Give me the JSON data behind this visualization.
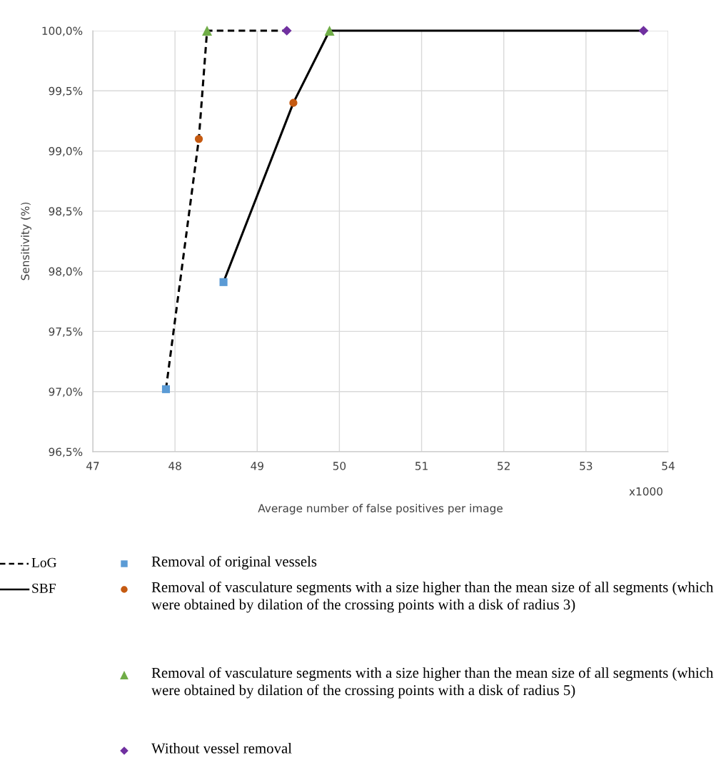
{
  "chart_data": {
    "type": "line",
    "xlabel": "Average number of false positives per image",
    "ylabel": "Sensitivity (%)",
    "xlim": [
      47,
      54
    ],
    "xticks": [
      47,
      48,
      49,
      50,
      51,
      52,
      53,
      54
    ],
    "ylim": [
      96.5,
      100
    ],
    "yticks": [
      {
        "value": 96.5,
        "label": "96,5%"
      },
      {
        "value": 97.0,
        "label": "97,0%"
      },
      {
        "value": 97.5,
        "label": "97,5%"
      },
      {
        "value": 98.0,
        "label": "98,0%"
      },
      {
        "value": 98.5,
        "label": "98,5%"
      },
      {
        "value": 99.0,
        "label": "99,0%"
      },
      {
        "value": 99.5,
        "label": "99,5%"
      },
      {
        "value": 100.0,
        "label": "100,0%"
      }
    ],
    "grid": true,
    "legend": "bottom",
    "annotations": [
      "x1000"
    ],
    "series": [
      {
        "name": "LoG",
        "color": "#000000",
        "line_style": "dashed",
        "marker": "none",
        "x": [
          47.89,
          48.29,
          48.39,
          49.36
        ],
        "values": [
          97.02,
          99.1,
          100,
          100
        ]
      },
      {
        "name": "SBF",
        "color": "#000000",
        "line_style": "solid",
        "marker": "none",
        "x": [
          48.59,
          49.44,
          49.88,
          53.7
        ],
        "values": [
          97.91,
          99.4,
          100,
          100
        ]
      },
      {
        "name": "Removal of original vessels",
        "type": "scatter",
        "color": "#5b9bd5",
        "marker": "square",
        "x": [
          47.89,
          48.59
        ],
        "values": [
          97.02,
          97.91
        ]
      },
      {
        "name": "Removal of vasculature segments with a size higher than the mean size of all segments (which were obtained by dilation of the crossing points with a disk of radius 3)",
        "type": "scatter",
        "color": "#c55a11",
        "marker": "circle",
        "x": [
          48.29,
          49.44
        ],
        "values": [
          99.1,
          99.4
        ]
      },
      {
        "name": "Removal of vasculature segments with a size higher than the mean size of all segments (which were obtained by dilation of the crossing points with a disk of radius 5)",
        "type": "scatter",
        "color": "#70ad47",
        "marker": "triangle",
        "x": [
          48.39,
          49.88
        ],
        "values": [
          100,
          100
        ]
      },
      {
        "name": "Without vessel removal",
        "type": "scatter",
        "color": "#7030a0",
        "marker": "diamond",
        "x": [
          49.36,
          53.7
        ],
        "values": [
          100,
          100
        ]
      }
    ]
  }
}
